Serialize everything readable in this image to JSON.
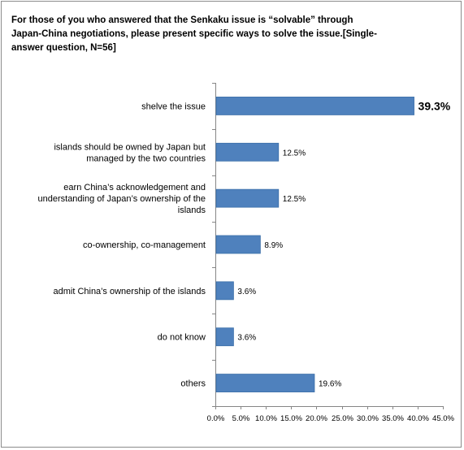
{
  "chart_data": {
    "type": "bar",
    "orientation": "horizontal",
    "title": "For those of you who answered that the Senkaku issue is “solvable” through\nJapan-China negotiations, please present specific ways to solve the issue.[Single-\nanswer question, N=56]",
    "categories": [
      "shelve the issue",
      "islands should be owned by Japan but managed by the two countries",
      "earn China’s acknowledgement and understanding of Japan’s ownership of the islands",
      "co-ownership, co-management",
      "admit China’s ownership of the islands",
      "do not know",
      "others"
    ],
    "category_lines": [
      [
        "shelve the issue"
      ],
      [
        "islands should be owned by Japan but",
        "managed by the two countries"
      ],
      [
        "earn China’s acknowledgement and",
        "understanding of Japan’s ownership of the",
        "islands"
      ],
      [
        "co-ownership, co-management"
      ],
      [
        "admit China’s ownership of the islands"
      ],
      [
        "do not know"
      ],
      [
        "others"
      ]
    ],
    "values": [
      39.3,
      12.5,
      12.5,
      8.9,
      3.6,
      3.6,
      19.6
    ],
    "value_labels": [
      "39.3%",
      "12.5%",
      "12.5%",
      "8.9%",
      "3.6%",
      "3.6%",
      "19.6%"
    ],
    "highlight_index": 0,
    "xlim": [
      0,
      45
    ],
    "xticks": [
      "0.0%",
      "5.0%",
      "10.0%",
      "15.0%",
      "20.0%",
      "25.0%",
      "30.0%",
      "35.0%",
      "40.0%",
      "45.0%"
    ],
    "grid": false,
    "legend": "none",
    "colors": {
      "bar": "#4f81bd",
      "bar_edge": "#3a6ea8",
      "axis": "#868686"
    }
  }
}
